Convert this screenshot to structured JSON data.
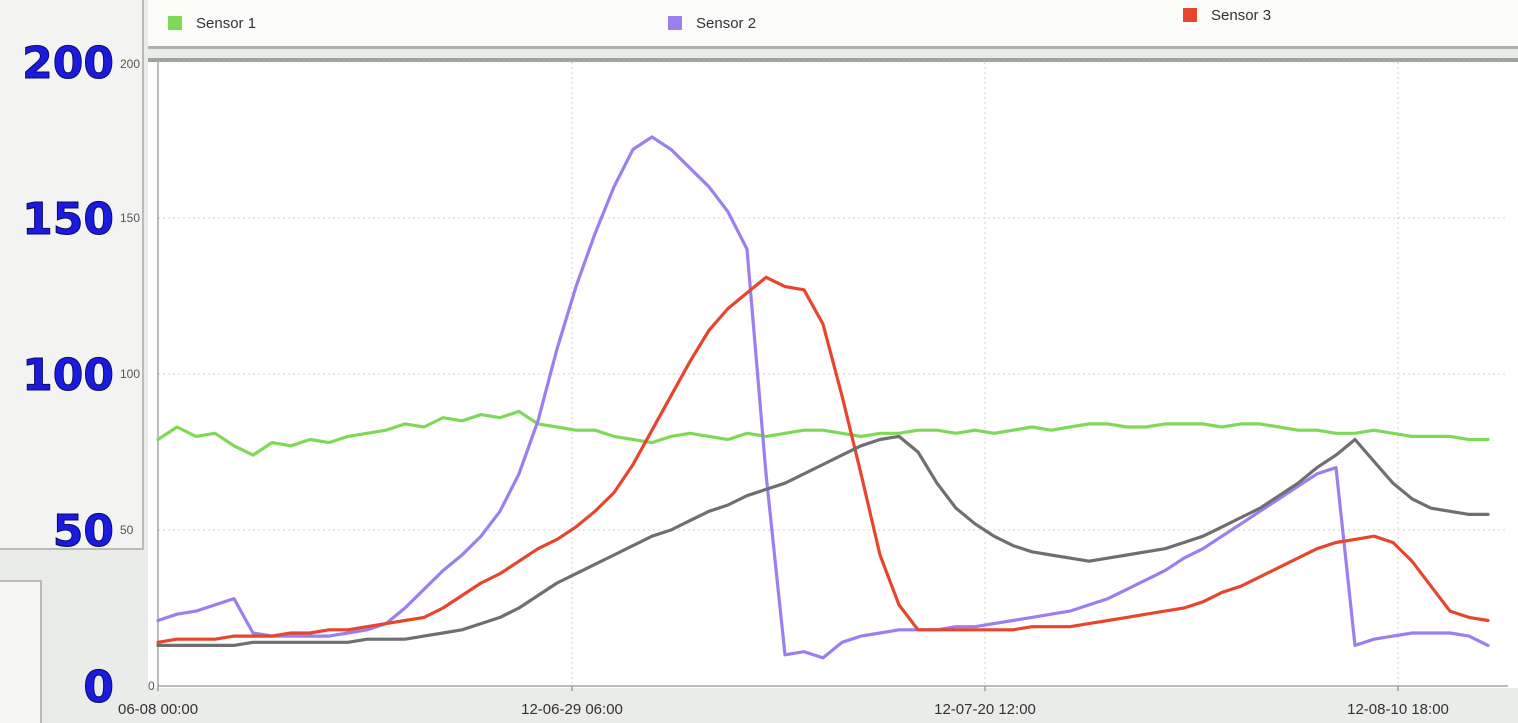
{
  "legend": {
    "items": [
      {
        "label": "Sensor 1",
        "color": "#7ed957"
      },
      {
        "label": "Sensor 2",
        "color": "#9b7ef0"
      },
      {
        "label": "Sensor 3",
        "color": "#e8452e"
      }
    ]
  },
  "chart_data": {
    "type": "line",
    "x_ticks": [
      "06-08 00:00",
      "12-06-29 06:00",
      "12-07-20 12:00",
      "12-08-10 18:00"
    ],
    "y_ticks_large": [
      "0",
      "50",
      "100",
      "150",
      "200"
    ],
    "y_ticks_small": [
      "0",
      "50",
      "100",
      "150",
      "200"
    ],
    "ylim": [
      0,
      200
    ],
    "grid": true,
    "legend_position": "top",
    "x": [
      0,
      3,
      6,
      9,
      12,
      15,
      18,
      21,
      24,
      27,
      30,
      33,
      36,
      39,
      42,
      45,
      48,
      51,
      54,
      57,
      60,
      63,
      66,
      69,
      72,
      75,
      78,
      81,
      84,
      87,
      90,
      93,
      96,
      99,
      102,
      105,
      108,
      111,
      114,
      117,
      120,
      123,
      126,
      129,
      132,
      135,
      138,
      141,
      144,
      147,
      150,
      153,
      156,
      159,
      162,
      165,
      168,
      171,
      174,
      177,
      180,
      183,
      186,
      189,
      192,
      195,
      198,
      201,
      204,
      207,
      210
    ],
    "series": [
      {
        "name": "Sensor 1",
        "color": "#7ed957",
        "values": [
          79,
          83,
          80,
          81,
          77,
          74,
          78,
          77,
          79,
          78,
          80,
          81,
          82,
          84,
          83,
          86,
          85,
          87,
          86,
          88,
          84,
          83,
          82,
          82,
          80,
          79,
          78,
          80,
          81,
          80,
          79,
          81,
          80,
          81,
          82,
          82,
          81,
          80,
          81,
          81,
          82,
          82,
          81,
          82,
          81,
          82,
          83,
          82,
          83,
          84,
          84,
          83,
          83,
          84,
          84,
          84,
          83,
          84,
          84,
          83,
          82,
          82,
          81,
          81,
          82,
          81,
          80,
          80,
          80,
          79,
          79
        ]
      },
      {
        "name": "Sensor 2",
        "color": "#9b7ef0",
        "values": [
          21,
          23,
          24,
          26,
          28,
          17,
          16,
          16,
          16,
          16,
          17,
          18,
          20,
          25,
          31,
          37,
          42,
          48,
          56,
          68,
          85,
          108,
          128,
          145,
          160,
          172,
          176,
          172,
          166,
          160,
          152,
          140,
          68,
          10,
          11,
          9,
          14,
          16,
          17,
          18,
          18,
          18,
          19,
          19,
          20,
          21,
          22,
          23,
          24,
          26,
          28,
          31,
          34,
          37,
          41,
          44,
          48,
          52,
          56,
          60,
          64,
          68,
          70,
          13,
          15,
          16,
          17,
          17,
          17,
          16,
          13
        ]
      },
      {
        "name": "Sensor 3",
        "color": "#e8452e",
        "values": [
          14,
          15,
          15,
          15,
          16,
          16,
          16,
          17,
          17,
          18,
          18,
          19,
          20,
          21,
          22,
          25,
          29,
          33,
          36,
          40,
          44,
          47,
          51,
          56,
          62,
          71,
          82,
          93,
          104,
          114,
          121,
          126,
          131,
          128,
          127,
          116,
          93,
          68,
          42,
          26,
          18,
          18,
          18,
          18,
          18,
          18,
          19,
          19,
          19,
          20,
          21,
          22,
          23,
          24,
          25,
          27,
          30,
          32,
          35,
          38,
          41,
          44,
          46,
          47,
          48,
          46,
          40,
          32,
          24,
          22,
          21
        ]
      },
      {
        "name": "",
        "color": "#6f6f6f",
        "values": [
          13,
          13,
          13,
          13,
          13,
          14,
          14,
          14,
          14,
          14,
          14,
          15,
          15,
          15,
          16,
          17,
          18,
          20,
          22,
          25,
          29,
          33,
          36,
          39,
          42,
          45,
          48,
          50,
          53,
          56,
          58,
          61,
          63,
          65,
          68,
          71,
          74,
          77,
          79,
          80,
          75,
          65,
          57,
          52,
          48,
          45,
          43,
          42,
          41,
          40,
          41,
          42,
          43,
          44,
          46,
          48,
          51,
          54,
          57,
          61,
          65,
          70,
          74,
          79,
          72,
          65,
          60,
          57,
          56,
          55,
          55
        ]
      }
    ]
  }
}
